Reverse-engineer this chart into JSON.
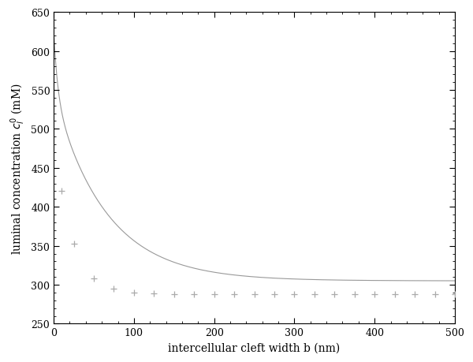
{
  "title": "",
  "xlabel": "intercellular cleft width b (nm)",
  "ylabel": "luminal concentration $c_l^0$ (mM)",
  "xlim": [
    0,
    500
  ],
  "ylim": [
    250,
    650
  ],
  "xticks": [
    0,
    100,
    200,
    300,
    400,
    500
  ],
  "yticks": [
    250,
    300,
    350,
    400,
    450,
    500,
    550,
    600,
    650
  ],
  "curve_color": "#999999",
  "marker_color": "#aaaaaa",
  "background_color": "#ffffff",
  "curve_asymptote": 305.0,
  "curve_amplitude": 320.0,
  "curve_decay_const": 20.0,
  "marker_x": [
    10,
    25,
    50,
    75,
    100,
    125,
    150,
    175,
    200,
    225,
    250,
    275,
    300,
    325,
    350,
    375,
    400,
    425,
    450,
    475,
    500
  ],
  "marker_asymptote": 288.0,
  "marker_amplitude": 265.0,
  "marker_decay_const": 28.0,
  "figsize": [
    6.0,
    4.6
  ],
  "dpi": 100
}
